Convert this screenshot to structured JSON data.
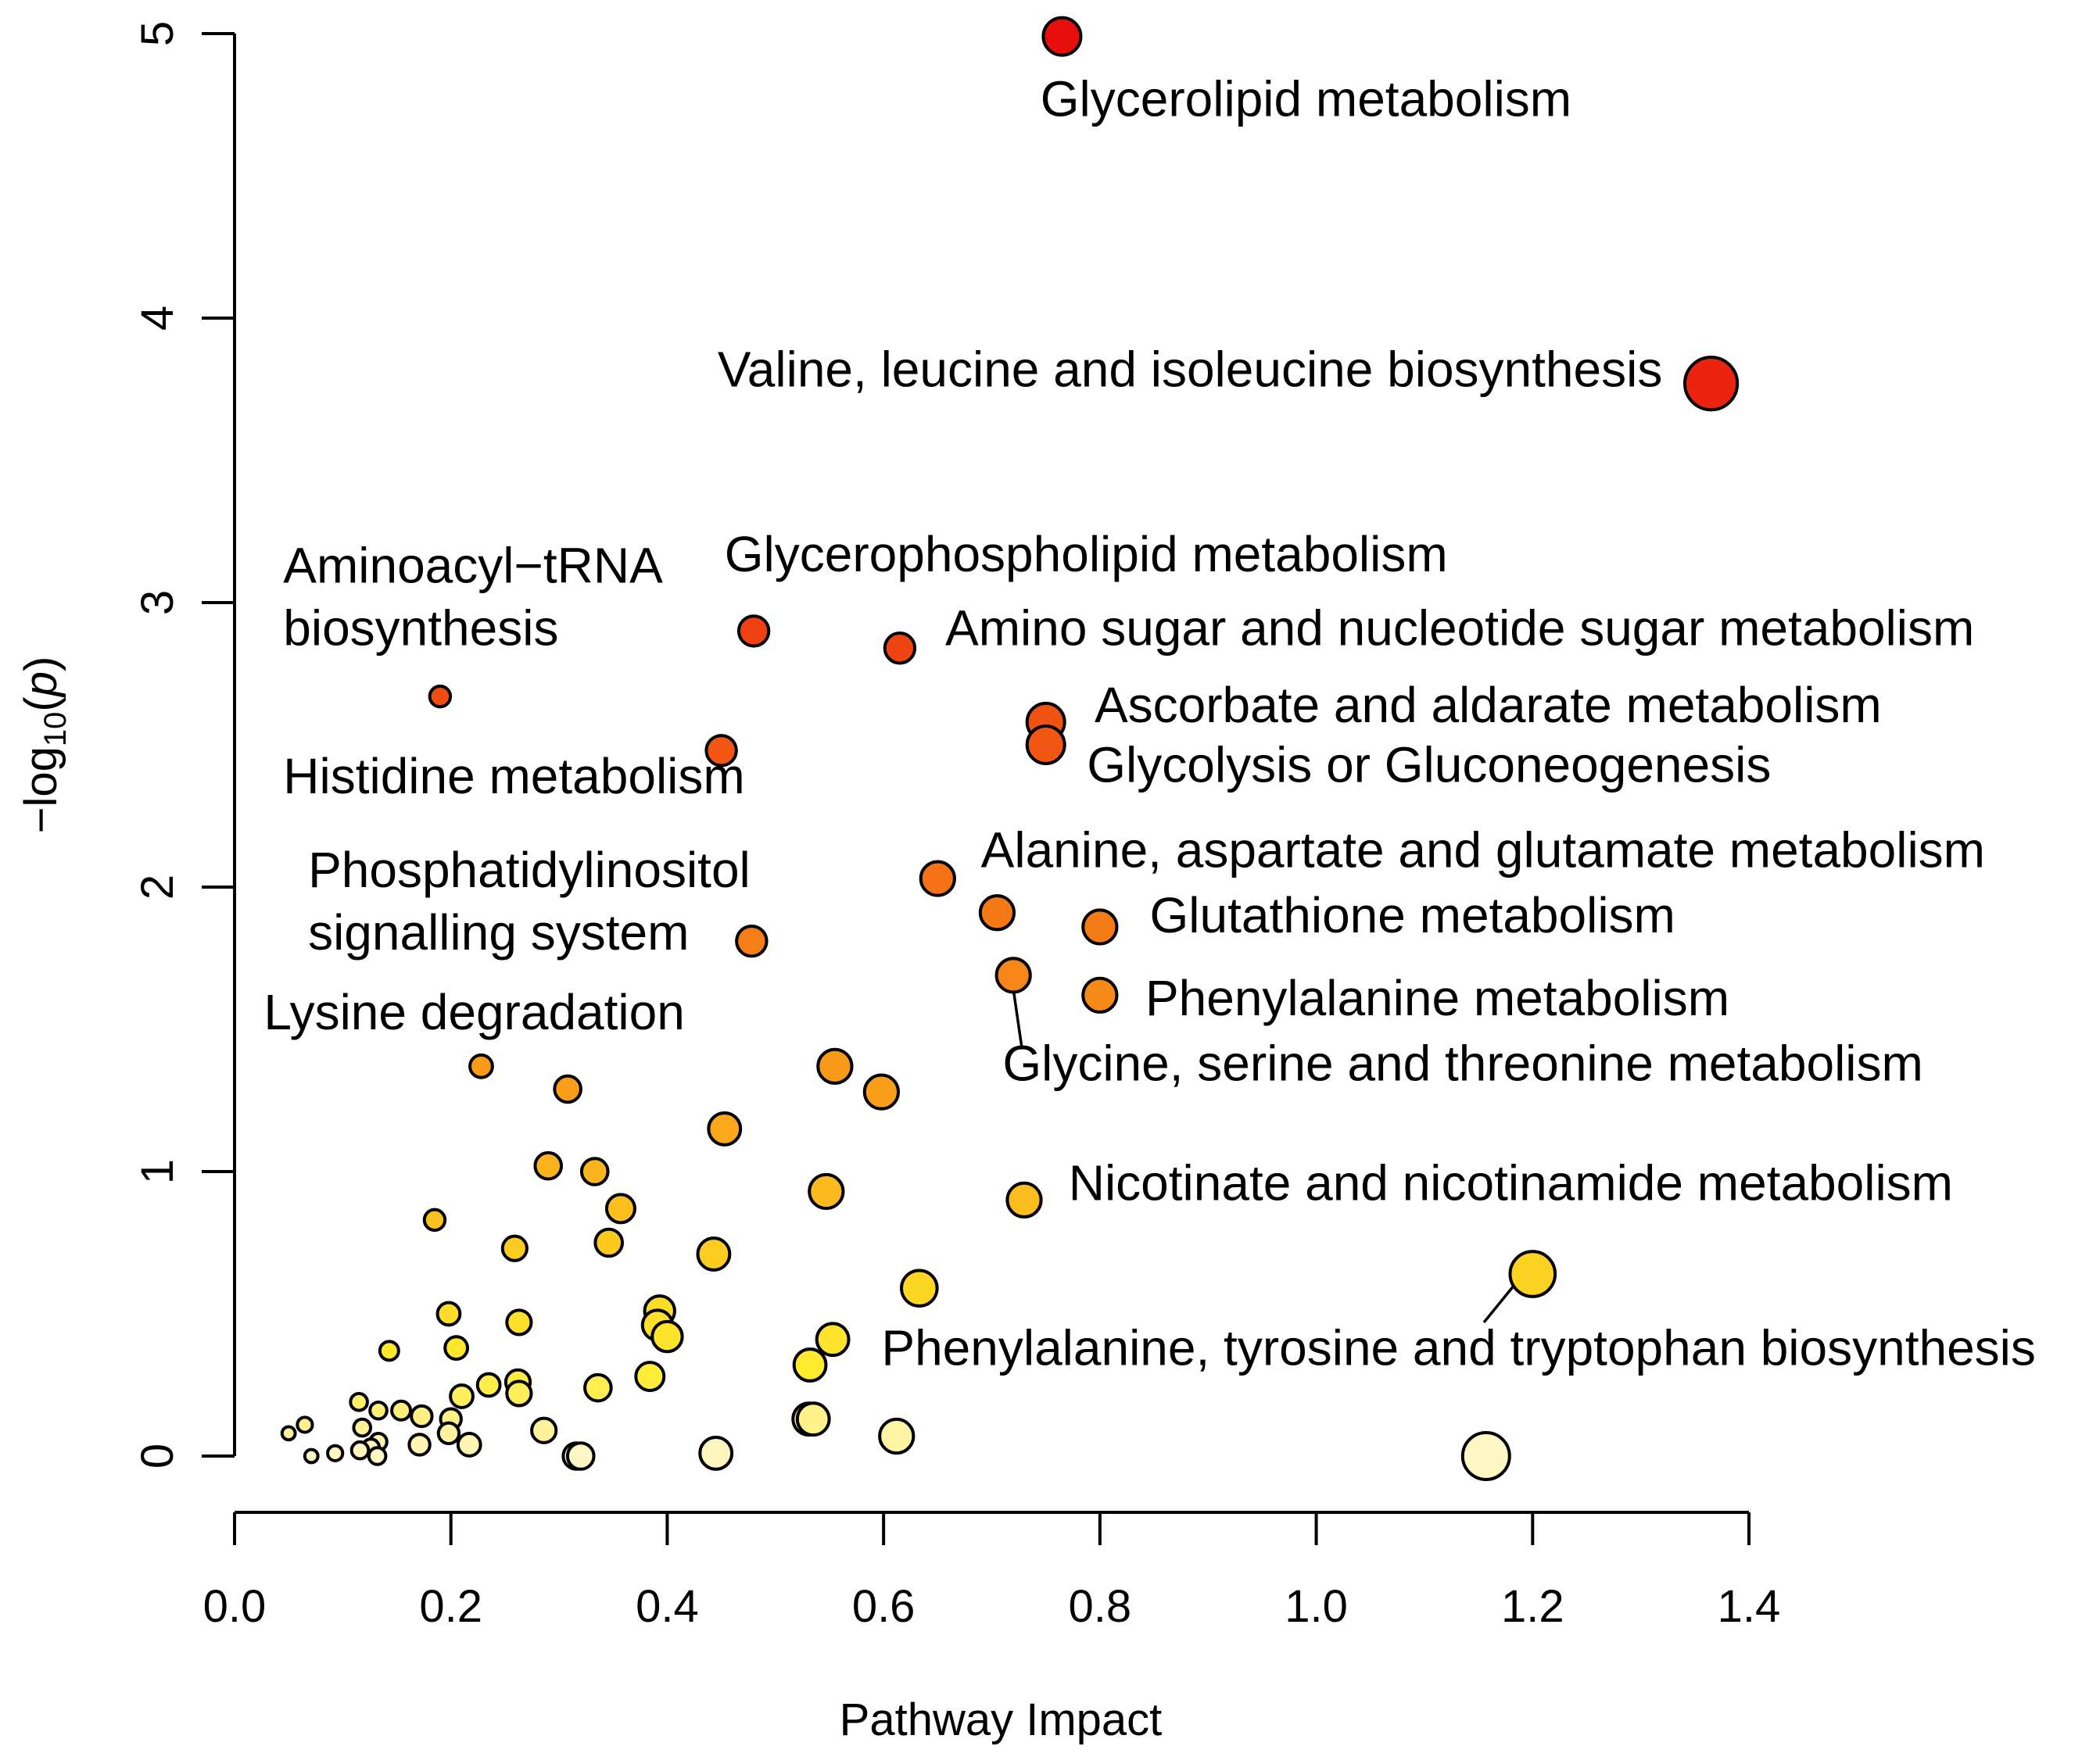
{
  "chart_data": {
    "type": "scatter",
    "title": "",
    "xlabel": "Pathway Impact",
    "ylabel_prefix": "−log",
    "ylabel_sub": "10",
    "ylabel_open": "(",
    "ylabel_var": "p",
    "ylabel_close": ")",
    "xlim": [
      0.0,
      1.4
    ],
    "ylim": [
      0,
      5
    ],
    "x_ticks": [
      "0.0",
      "0.2",
      "0.4",
      "0.6",
      "0.8",
      "1.0",
      "1.2",
      "1.4"
    ],
    "y_ticks": [
      "0",
      "1",
      "2",
      "3",
      "4",
      "5"
    ],
    "points": [
      {
        "x": 0.765,
        "y": 4.99,
        "r": 1.0
      },
      {
        "x": 1.365,
        "y": 3.77,
        "r": 1.4
      },
      {
        "x": 0.48,
        "y": 2.9,
        "r": 0.8
      },
      {
        "x": 0.615,
        "y": 2.84,
        "r": 0.8
      },
      {
        "x": 0.75,
        "y": 2.58,
        "r": 1.0
      },
      {
        "x": 0.75,
        "y": 2.5,
        "r": 1.0
      },
      {
        "x": 0.19,
        "y": 2.67,
        "r": 0.55
      },
      {
        "x": 0.45,
        "y": 2.48,
        "r": 0.8
      },
      {
        "x": 0.65,
        "y": 2.03,
        "r": 0.9
      },
      {
        "x": 0.705,
        "y": 1.91,
        "r": 0.9
      },
      {
        "x": 0.8,
        "y": 1.86,
        "r": 0.9
      },
      {
        "x": 0.478,
        "y": 1.81,
        "r": 0.8
      },
      {
        "x": 0.72,
        "y": 1.69,
        "r": 0.9
      },
      {
        "x": 0.8,
        "y": 1.62,
        "r": 0.9
      },
      {
        "x": 0.228,
        "y": 1.37,
        "r": 0.6
      },
      {
        "x": 0.555,
        "y": 1.37,
        "r": 0.9
      },
      {
        "x": 0.308,
        "y": 1.29,
        "r": 0.7
      },
      {
        "x": 0.598,
        "y": 1.28,
        "r": 0.9
      },
      {
        "x": 0.453,
        "y": 1.15,
        "r": 0.85
      },
      {
        "x": 0.29,
        "y": 1.02,
        "r": 0.7
      },
      {
        "x": 0.333,
        "y": 1.0,
        "r": 0.7
      },
      {
        "x": 0.547,
        "y": 0.93,
        "r": 0.9
      },
      {
        "x": 0.73,
        "y": 0.9,
        "r": 0.9
      },
      {
        "x": 0.185,
        "y": 0.83,
        "r": 0.55
      },
      {
        "x": 0.357,
        "y": 0.87,
        "r": 0.75
      },
      {
        "x": 0.259,
        "y": 0.73,
        "r": 0.65
      },
      {
        "x": 0.346,
        "y": 0.75,
        "r": 0.72
      },
      {
        "x": 0.443,
        "y": 0.71,
        "r": 0.85
      },
      {
        "x": 0.633,
        "y": 0.59,
        "r": 0.95
      },
      {
        "x": 1.2,
        "y": 0.64,
        "r": 1.2
      },
      {
        "x": 0.198,
        "y": 0.5,
        "r": 0.6
      },
      {
        "x": 0.393,
        "y": 0.51,
        "r": 0.8
      },
      {
        "x": 0.263,
        "y": 0.47,
        "r": 0.65
      },
      {
        "x": 0.391,
        "y": 0.46,
        "r": 0.8
      },
      {
        "x": 0.4,
        "y": 0.42,
        "r": 0.8
      },
      {
        "x": 0.553,
        "y": 0.41,
        "r": 0.85
      },
      {
        "x": 0.143,
        "y": 0.37,
        "r": 0.5
      },
      {
        "x": 0.205,
        "y": 0.38,
        "r": 0.6
      },
      {
        "x": 0.532,
        "y": 0.32,
        "r": 0.85
      },
      {
        "x": 0.384,
        "y": 0.28,
        "r": 0.75
      },
      {
        "x": 0.262,
        "y": 0.26,
        "r": 0.65
      },
      {
        "x": 0.235,
        "y": 0.25,
        "r": 0.6
      },
      {
        "x": 0.336,
        "y": 0.24,
        "r": 0.7
      },
      {
        "x": 0.263,
        "y": 0.22,
        "r": 0.65
      },
      {
        "x": 0.21,
        "y": 0.21,
        "r": 0.6
      },
      {
        "x": 0.115,
        "y": 0.19,
        "r": 0.45
      },
      {
        "x": 0.133,
        "y": 0.16,
        "r": 0.45
      },
      {
        "x": 0.154,
        "y": 0.16,
        "r": 0.5
      },
      {
        "x": 0.173,
        "y": 0.14,
        "r": 0.55
      },
      {
        "x": 0.2,
        "y": 0.13,
        "r": 0.55
      },
      {
        "x": 0.065,
        "y": 0.11,
        "r": 0.4
      },
      {
        "x": 0.118,
        "y": 0.1,
        "r": 0.45
      },
      {
        "x": 0.531,
        "y": 0.13,
        "r": 0.85
      },
      {
        "x": 0.535,
        "y": 0.13,
        "r": 0.85
      },
      {
        "x": 0.286,
        "y": 0.09,
        "r": 0.65
      },
      {
        "x": 0.612,
        "y": 0.07,
        "r": 0.9
      },
      {
        "x": 0.05,
        "y": 0.08,
        "r": 0.35
      },
      {
        "x": 0.198,
        "y": 0.08,
        "r": 0.55
      },
      {
        "x": 0.133,
        "y": 0.05,
        "r": 0.45
      },
      {
        "x": 0.171,
        "y": 0.04,
        "r": 0.55
      },
      {
        "x": 0.217,
        "y": 0.04,
        "r": 0.6
      },
      {
        "x": 0.126,
        "y": 0.03,
        "r": 0.45
      },
      {
        "x": 0.116,
        "y": 0.02,
        "r": 0.45
      },
      {
        "x": 0.093,
        "y": 0.01,
        "r": 0.4
      },
      {
        "x": 0.071,
        "y": 0.0,
        "r": 0.35
      },
      {
        "x": 0.132,
        "y": 0.0,
        "r": 0.45
      },
      {
        "x": 0.316,
        "y": 0.0,
        "r": 0.7
      },
      {
        "x": 0.32,
        "y": 0.0,
        "r": 0.7
      },
      {
        "x": 0.445,
        "y": 0.01,
        "r": 0.85
      },
      {
        "x": 1.157,
        "y": 0.0,
        "r": 1.25
      }
    ],
    "annotations": [
      {
        "lines": [
          "Glycerolipid metabolism"
        ],
        "x": 0.745,
        "y": 4.71,
        "anchor": "start"
      },
      {
        "lines": [
          "Valine, leucine and isoleucine biosynthesis"
        ],
        "x": 1.32,
        "y": 3.76,
        "anchor": "end"
      },
      {
        "lines": [
          "Aminoacyl−tRNA",
          "biosynthesis"
        ],
        "x": 0.045,
        "y": 3.07,
        "anchor": "start"
      },
      {
        "lines": [
          "Glycerophospholipid metabolism"
        ],
        "x": 0.453,
        "y": 3.11,
        "anchor": "start"
      },
      {
        "lines": [
          "Amino sugar and nucleotide sugar metabolism"
        ],
        "x": 0.657,
        "y": 2.85,
        "anchor": "start"
      },
      {
        "lines": [
          "Ascorbate and aldarate metabolism"
        ],
        "x": 0.795,
        "y": 2.58,
        "anchor": "start"
      },
      {
        "lines": [
          "Glycolysis or Gluconeogenesis"
        ],
        "x": 0.788,
        "y": 2.37,
        "anchor": "start"
      },
      {
        "lines": [
          "Histidine metabolism"
        ],
        "x": 0.045,
        "y": 2.33,
        "anchor": "start"
      },
      {
        "lines": [
          "Alanine, aspartate and glutamate metabolism"
        ],
        "x": 0.69,
        "y": 2.07,
        "anchor": "start"
      },
      {
        "lines": [
          "Phosphatidylinositol",
          "signalling system"
        ],
        "x": 0.068,
        "y": 2.0,
        "anchor": "start"
      },
      {
        "lines": [
          "Glutathione metabolism"
        ],
        "x": 0.846,
        "y": 1.84,
        "anchor": "start"
      },
      {
        "lines": [
          "Phenylalanine metabolism"
        ],
        "x": 0.842,
        "y": 1.55,
        "anchor": "start"
      },
      {
        "lines": [
          "Lysine degradation"
        ],
        "x": 0.027,
        "y": 1.5,
        "anchor": "start"
      },
      {
        "lines": [
          "Glycine, serine and threonine metabolism"
        ],
        "x": 0.71,
        "y": 1.32,
        "anchor": "start"
      },
      {
        "lines": [
          "Nicotinate and nicotinamide metabolism"
        ],
        "x": 0.771,
        "y": 0.9,
        "anchor": "start"
      },
      {
        "lines": [
          "Phenylalanine, tyrosine and tryptophan biosynthesis"
        ],
        "x": 0.598,
        "y": 0.32,
        "anchor": "start"
      }
    ],
    "leaders": [
      {
        "x1": 0.72,
        "y1": 1.64,
        "x2": 0.728,
        "y2": 1.43
      },
      {
        "x1": 1.185,
        "y1": 0.61,
        "x2": 1.155,
        "y2": 0.47
      }
    ]
  }
}
